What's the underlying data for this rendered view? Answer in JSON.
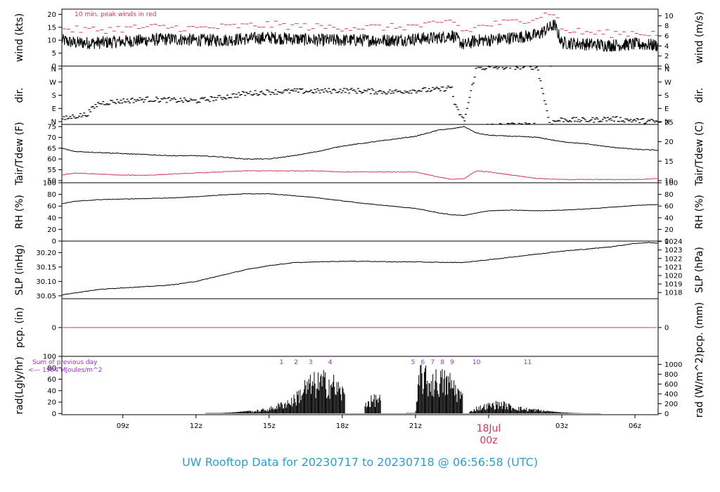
{
  "title": "UW Rooftop Data for 20230717  to  20230718 @ 06:56:58  (UTC)",
  "colors": {
    "main": "#000000",
    "red": "#d6395a",
    "purple": "#9b30d9",
    "title": "#2a9fd6"
  },
  "chart_data": [
    {
      "id": "wind",
      "type": "line",
      "ylabel": "wind (kts)",
      "ylabel_right": "wind (m/s)",
      "ylim": [
        0,
        22
      ],
      "yticks": [
        0,
        5,
        10,
        15,
        20
      ],
      "yticks_right": [
        0,
        2,
        4,
        6,
        8,
        10
      ],
      "right_factor": 0.5144,
      "annotation": "10 min. peak winds in red",
      "series": [
        {
          "values_hint": "mean",
          "x": [
            6.5,
            7,
            8,
            9,
            10,
            11,
            12,
            13,
            14,
            15,
            16,
            17,
            18,
            19,
            20,
            21,
            22,
            22.5,
            23,
            23.5,
            24,
            25,
            26,
            26.7,
            27,
            28,
            29,
            30,
            31,
            30.9
          ],
          "y": [
            10,
            9,
            9,
            9.5,
            10,
            10.5,
            10,
            10,
            10.5,
            11,
            10.5,
            10,
            10,
            10,
            10,
            10.5,
            11,
            12,
            8,
            10,
            10,
            11,
            12,
            16,
            9,
            8.5,
            8,
            8.5,
            8,
            8
          ]
        },
        {
          "values_hint": "peak",
          "x": [
            6.5,
            7,
            8,
            9,
            10,
            11,
            12,
            13,
            14,
            15,
            16,
            17,
            18,
            19,
            20,
            21,
            22,
            22.5,
            23,
            23.5,
            24,
            25,
            26,
            26.7,
            27,
            28,
            29,
            30,
            31,
            30.9
          ],
          "y": [
            15,
            14,
            14,
            14.5,
            15,
            15,
            14.5,
            15,
            15.5,
            16,
            15.5,
            15,
            15,
            15,
            15,
            15.5,
            16,
            18,
            13,
            15,
            16,
            17,
            19,
            21,
            14,
            13,
            12.5,
            13,
            12.5,
            13
          ]
        }
      ]
    },
    {
      "id": "dir",
      "type": "scatter",
      "ylabel": "dir.",
      "ylabel_right": "dir.",
      "ylim": [
        0,
        360
      ],
      "yticks": [
        "N",
        "E",
        "S",
        "W",
        "N"
      ],
      "yticks_right": [
        "N",
        "E",
        "S",
        "W",
        "N"
      ],
      "x": [
        6.5,
        7,
        7.5,
        8,
        9,
        10,
        11,
        12,
        13,
        14,
        15,
        16,
        17,
        18,
        19,
        20,
        21,
        22,
        22.5,
        22.6,
        23,
        23.5,
        24,
        25,
        26,
        26.5,
        27,
        28,
        29,
        30,
        31,
        30.9
      ],
      "y": [
        30,
        50,
        60,
        130,
        145,
        155,
        150,
        145,
        165,
        190,
        200,
        205,
        205,
        210,
        205,
        200,
        210,
        215,
        230,
        120,
        20,
        350,
        350,
        355,
        355,
        10,
        30,
        25,
        35,
        25,
        15,
        350
      ]
    },
    {
      "id": "temp",
      "type": "line",
      "ylabel": "Tair/Tdew (F)",
      "ylabel_right": "Tair/Tdew (C)",
      "ylim": [
        49,
        76
      ],
      "yticks": [
        50,
        55,
        60,
        65,
        70,
        75
      ],
      "yticks_right": [
        10,
        15,
        20,
        25
      ],
      "series": [
        {
          "name": "Tair",
          "x": [
            6.5,
            7,
            8,
            9,
            10,
            11,
            12,
            13,
            14,
            15,
            16,
            17,
            18,
            19,
            20,
            21,
            22,
            22.5,
            23,
            23.5,
            24,
            25,
            26,
            27,
            28,
            29,
            30,
            31,
            30.9
          ],
          "y": [
            65,
            63.5,
            63,
            62.5,
            62,
            61.5,
            61.5,
            61,
            60,
            60,
            61.5,
            63.5,
            66,
            67.5,
            69,
            70.5,
            73.5,
            74,
            75,
            72,
            71,
            70.5,
            70,
            68,
            67,
            65.5,
            64.5,
            64,
            63
          ]
        },
        {
          "name": "Tdew",
          "x": [
            6.5,
            7,
            8,
            9,
            10,
            11,
            12,
            13,
            14,
            15,
            16,
            17,
            18,
            19,
            20,
            21,
            22,
            22.5,
            23,
            23.5,
            24,
            25,
            26,
            27,
            28,
            29,
            30,
            31,
            30.9
          ],
          "y": [
            52.5,
            53.5,
            53,
            52.5,
            52.5,
            53,
            53.5,
            54,
            54.5,
            54.5,
            54.5,
            54.5,
            54,
            54,
            54,
            54,
            51.5,
            50.5,
            51,
            54.5,
            54,
            52.5,
            51,
            50.5,
            50.5,
            50.5,
            50.5,
            51,
            51
          ]
        }
      ]
    },
    {
      "id": "rh",
      "type": "line",
      "ylabel": "RH (%)",
      "ylabel_right": "RH (%)",
      "ylim": [
        0,
        100
      ],
      "yticks": [
        0,
        20,
        40,
        60,
        80,
        100
      ],
      "yticks_right": [
        0,
        20,
        40,
        60,
        80,
        100
      ],
      "x": [
        6.5,
        7,
        8,
        9,
        10,
        11,
        12,
        13,
        14,
        15,
        16,
        17,
        18,
        19,
        20,
        21,
        22,
        22.5,
        23,
        23.5,
        24,
        25,
        26,
        27,
        28,
        29,
        30,
        31,
        30.9
      ],
      "y": [
        64,
        68,
        71,
        72,
        73,
        74,
        76,
        79,
        81,
        81,
        78,
        74,
        69,
        64,
        60,
        56,
        48,
        45,
        44,
        48,
        52,
        53,
        52,
        53,
        55,
        58,
        61,
        63,
        65
      ]
    },
    {
      "id": "slp",
      "type": "line",
      "ylabel": "SLP (inHg)",
      "ylabel_right": "SLP (hPa)",
      "ylim": [
        30.04,
        30.24
      ],
      "yticks": [
        30.05,
        30.1,
        30.15,
        30.2
      ],
      "yticks_labels": [
        "30.05",
        "30.10",
        "30.15",
        "30.20"
      ],
      "yticks_right": [
        1018,
        1019,
        1020,
        1021,
        1022,
        1023,
        1024
      ],
      "x": [
        6.5,
        7,
        8,
        9,
        10,
        11,
        12,
        13,
        14,
        15,
        16,
        17,
        18,
        19,
        20,
        21,
        22,
        23,
        24,
        25,
        26,
        27,
        28,
        29,
        30,
        30.6,
        31,
        30.9
      ],
      "y": [
        30.053,
        30.06,
        30.072,
        30.078,
        30.082,
        30.088,
        30.1,
        30.12,
        30.14,
        30.155,
        30.165,
        30.168,
        30.17,
        30.17,
        30.168,
        30.168,
        30.166,
        30.166,
        30.175,
        30.185,
        30.195,
        30.205,
        30.212,
        30.22,
        30.232,
        30.235,
        30.232,
        30.225
      ]
    },
    {
      "id": "pcp",
      "type": "line",
      "ylabel": "pcp. (in)",
      "ylabel_right": "pcp. (mm)",
      "ylim": [
        -1,
        1
      ],
      "yticks": [
        0
      ],
      "yticks_right": [
        0
      ],
      "x": [
        6.5,
        30.9
      ],
      "y": [
        0,
        0
      ]
    },
    {
      "id": "rad",
      "type": "bar",
      "ylabel": "rad(Lgly/hr)",
      "ylabel_right": "rad (W/m^2)",
      "ylim": [
        -2,
        100
      ],
      "yticks": [
        0,
        20,
        40,
        60,
        80,
        100
      ],
      "yticks_right": [
        0,
        200,
        400,
        600,
        800,
        1000
      ],
      "right_factor": 11.63,
      "annotation_lines": [
        "Sum of previous day",
        "<--- 1984 MJoules/m^2"
      ],
      "hour_labels": [
        "1",
        "2",
        "3",
        "4",
        "5",
        "6",
        "7",
        "8",
        "9",
        "10",
        "11"
      ],
      "hour_x": [
        15.5,
        16.1,
        16.7,
        17.5,
        20.9,
        21.3,
        21.7,
        22.1,
        22.5,
        23.5,
        25.6
      ],
      "x": [
        12.4,
        13,
        13.5,
        14,
        14.5,
        15,
        15.5,
        16,
        16.5,
        17,
        17.5,
        18,
        18.5,
        19,
        19.5,
        20,
        20.5,
        21,
        21.2,
        21.5,
        22,
        22.5,
        23,
        23.2,
        23.5,
        24,
        24.5,
        25,
        25.5,
        26,
        26.5,
        27,
        27.5,
        28,
        28.5
      ],
      "y": [
        1,
        1,
        2,
        4,
        6,
        10,
        20,
        30,
        60,
        70,
        72,
        48,
        5,
        25,
        36,
        1,
        1,
        1,
        92,
        72,
        75,
        68,
        30,
        2,
        12,
        18,
        22,
        14,
        10,
        8,
        4,
        2,
        1,
        0.5,
        0.5
      ]
    }
  ],
  "xaxis": {
    "xlim": [
      6.5,
      30.95
    ],
    "tick_positions": [
      9,
      12,
      15,
      18,
      21,
      24,
      27,
      30
    ],
    "tick_labels": [
      "09z",
      "12z",
      "15z",
      "18z",
      "21z",
      "18Jul",
      "03z",
      "06z"
    ],
    "day_label": "00z",
    "day_label_position": 24
  }
}
